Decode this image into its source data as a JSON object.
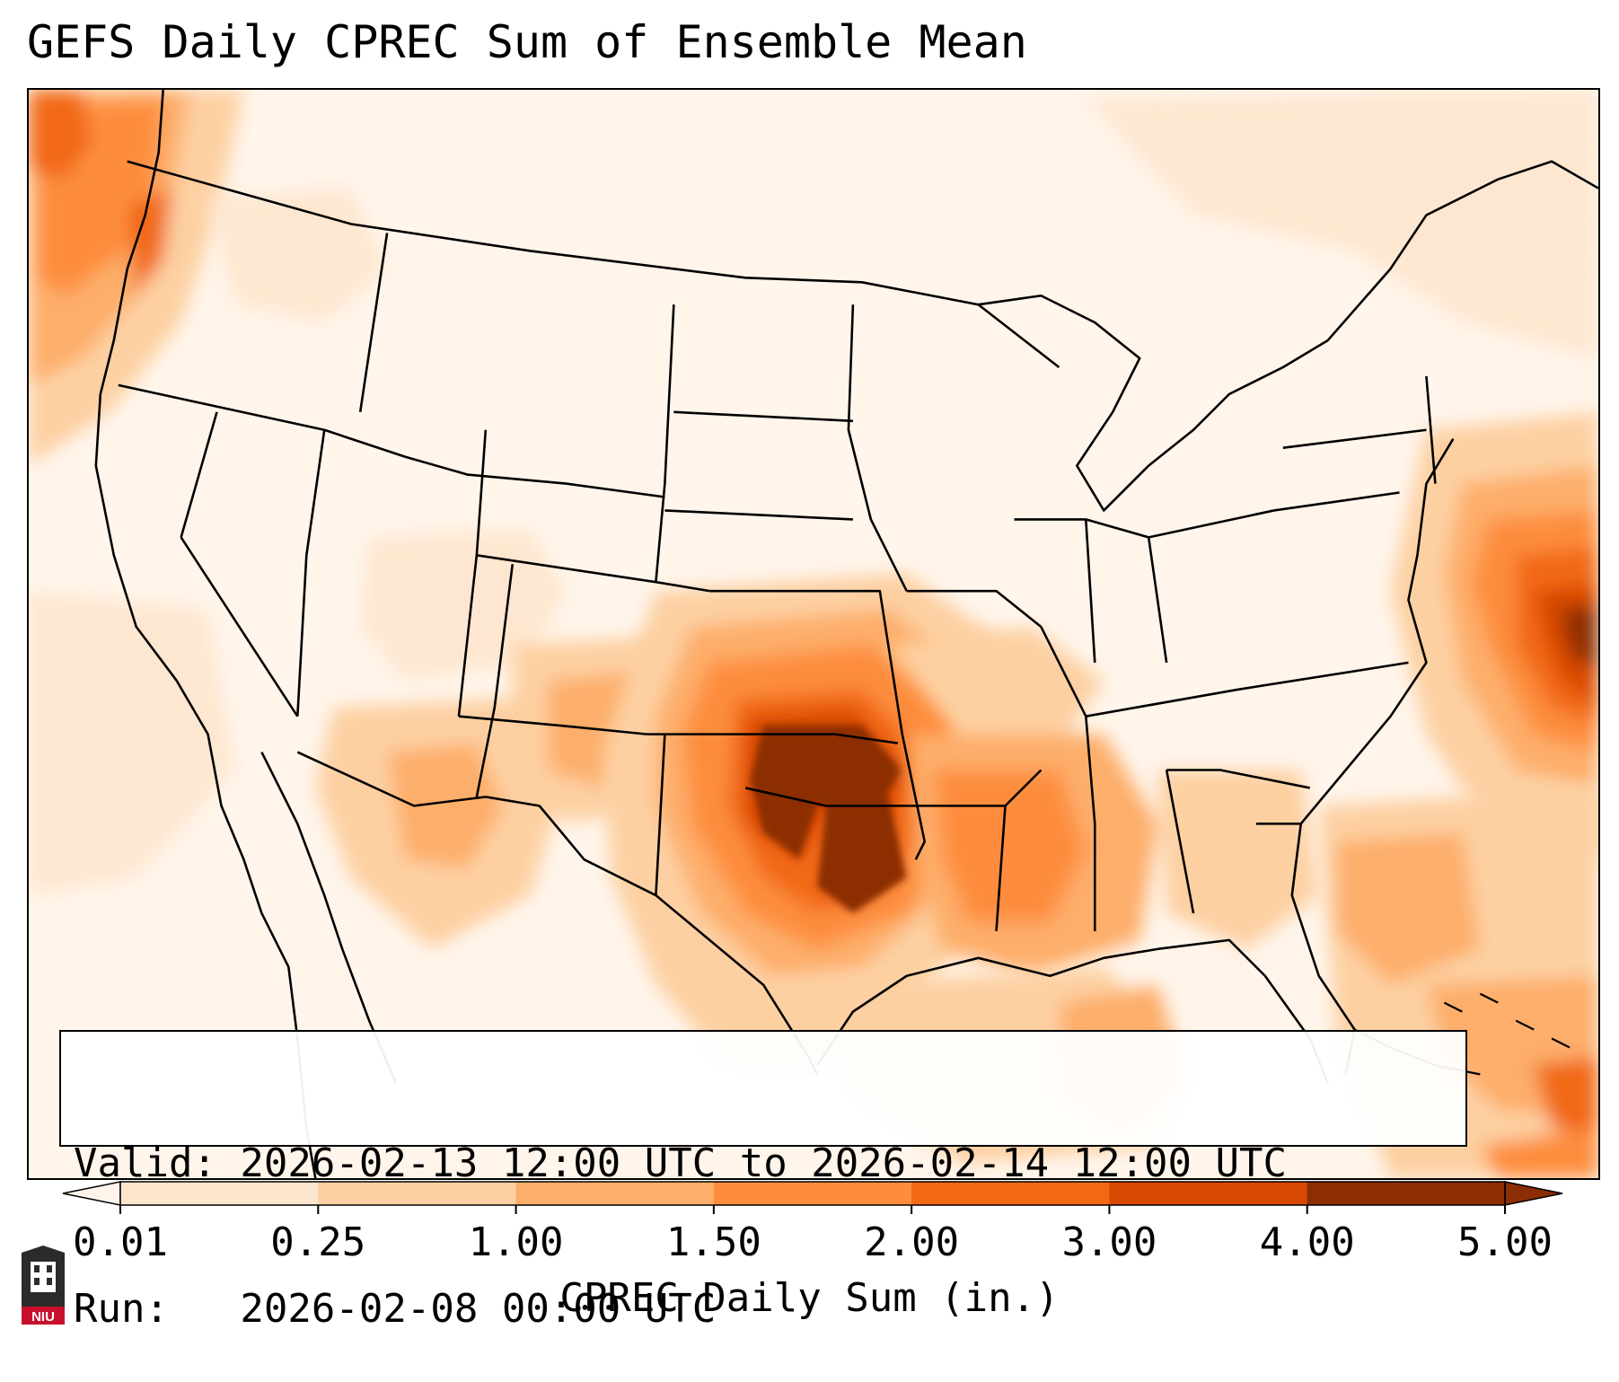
{
  "title": "GEFS Daily CPREC Sum of Ensemble Mean",
  "info": {
    "valid_line": "Valid: 2026-02-13 12:00 UTC to 2026-02-14 12:00 UTC",
    "run_line": "Run:   2026-02-08 00:00 UTC"
  },
  "colorbar": {
    "label": "CPREC Daily Sum (in.)",
    "ticks": [
      "0.01",
      "0.25",
      "1.00",
      "1.50",
      "2.00",
      "3.00",
      "4.00",
      "5.00"
    ],
    "colors": [
      "#fff5eb",
      "#fee6ce",
      "#fdd0a2",
      "#fdae6b",
      "#fd8d3c",
      "#f16913",
      "#d94801",
      "#8c2d04"
    ],
    "extend": "both"
  },
  "logo": {
    "text": "NIU"
  },
  "map": {
    "projection": "Lambert conformal, CONUS",
    "precip_colors": {
      "light": "#fff5eb",
      "low": "#fee6ce",
      "moderate": "#fdd0a2",
      "medium": "#fdae6b",
      "high": "#fd8d3c",
      "heavier": "#f16913",
      "heavy": "#d94801",
      "max": "#8c2d04"
    }
  }
}
